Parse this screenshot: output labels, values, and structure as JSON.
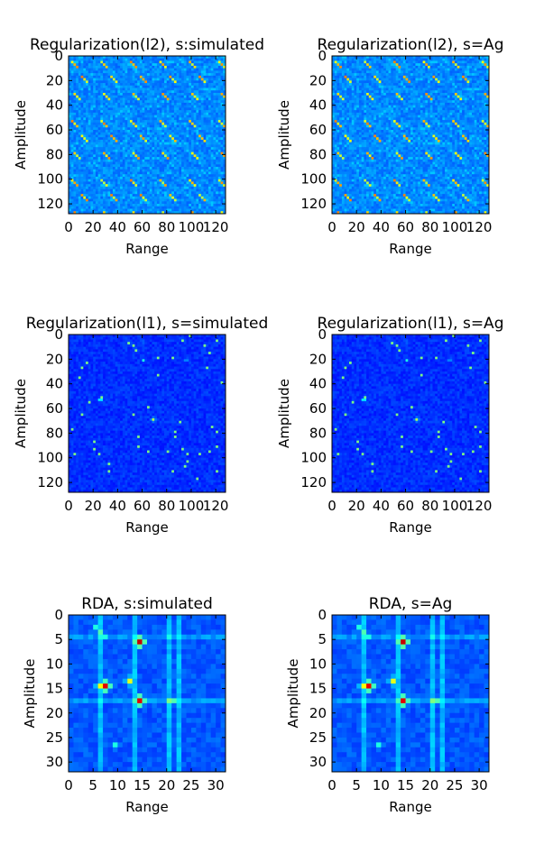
{
  "chart_data": [
    {
      "type": "heatmap",
      "id": "l2-sim",
      "title": "Regularization(l2), s:simulated",
      "xlabel": "Range",
      "ylabel": "Amplitude",
      "xlim": [
        0,
        128
      ],
      "ylim": [
        128,
        0
      ],
      "xticks": [
        "0",
        "20",
        "40",
        "60",
        "80",
        "100",
        "120"
      ],
      "yticks": [
        "0",
        "20",
        "40",
        "60",
        "80",
        "100",
        "120"
      ],
      "xtick_values": [
        0,
        20,
        40,
        60,
        80,
        100,
        120
      ],
      "ytick_values": [
        0,
        20,
        40,
        60,
        80,
        100,
        120
      ],
      "colormap": "jet",
      "pattern": "periodic-diagonal",
      "hotspots": [],
      "background_level": 0.22
    },
    {
      "type": "heatmap",
      "id": "l2-ag",
      "title": "Regularization(l2), s=Ag",
      "xlabel": "Range",
      "ylabel": "Amplitude",
      "xlim": [
        0,
        128
      ],
      "ylim": [
        128,
        0
      ],
      "xticks": [
        "0",
        "20",
        "40",
        "60",
        "80",
        "100",
        "120"
      ],
      "yticks": [
        "0",
        "20",
        "40",
        "60",
        "80",
        "100",
        "120"
      ],
      "xtick_values": [
        0,
        20,
        40,
        60,
        80,
        100,
        120
      ],
      "ytick_values": [
        0,
        20,
        40,
        60,
        80,
        100,
        120
      ],
      "colormap": "jet",
      "pattern": "periodic-diagonal",
      "hotspots": [],
      "background_level": 0.22
    },
    {
      "type": "heatmap",
      "id": "l1-sim",
      "title": "Regularization(l1), s=simulated",
      "xlabel": "Range",
      "ylabel": "Amplitude",
      "xlim": [
        0,
        128
      ],
      "ylim": [
        128,
        0
      ],
      "xticks": [
        "0",
        "20",
        "40",
        "60",
        "80",
        "100",
        "120"
      ],
      "yticks": [
        "0",
        "20",
        "40",
        "60",
        "80",
        "100",
        "120"
      ],
      "xtick_values": [
        0,
        20,
        40,
        60,
        80,
        100,
        120
      ],
      "ytick_values": [
        0,
        20,
        40,
        60,
        80,
        100,
        120
      ],
      "colormap": "jet",
      "pattern": "sparse",
      "hotspots": [
        [
          52,
          25,
          0.5
        ],
        [
          68,
          68,
          0.55
        ],
        [
          20,
          60,
          0.4
        ],
        [
          20,
          95,
          0.35
        ],
        [
          5,
          60,
          0.3
        ]
      ],
      "background_level": 0.14
    },
    {
      "type": "heatmap",
      "id": "l1-ag",
      "title": "Regularization(l1), s=Ag",
      "xlabel": "Range",
      "ylabel": "Amplitude",
      "xlim": [
        0,
        128
      ],
      "ylim": [
        128,
        0
      ],
      "xticks": [
        "0",
        "20",
        "40",
        "60",
        "80",
        "100",
        "120"
      ],
      "yticks": [
        "0",
        "20",
        "40",
        "60",
        "80",
        "100",
        "120"
      ],
      "xtick_values": [
        0,
        20,
        40,
        60,
        80,
        100,
        120
      ],
      "ytick_values": [
        0,
        20,
        40,
        60,
        80,
        100,
        120
      ],
      "colormap": "jet",
      "pattern": "sparse",
      "hotspots": [
        [
          52,
          25,
          0.5
        ],
        [
          68,
          68,
          0.55
        ],
        [
          20,
          60,
          0.4
        ],
        [
          20,
          95,
          0.35
        ],
        [
          5,
          60,
          0.3
        ]
      ],
      "background_level": 0.14
    },
    {
      "type": "heatmap",
      "id": "rda-sim",
      "title": "RDA, s:simulated",
      "xlabel": "Range",
      "ylabel": "Amplitude",
      "xlim": [
        0,
        32
      ],
      "ylim": [
        32,
        0
      ],
      "xticks": [
        "0",
        "5",
        "10",
        "15",
        "20",
        "25",
        "30"
      ],
      "yticks": [
        "0",
        "5",
        "10",
        "15",
        "20",
        "25",
        "30"
      ],
      "xtick_values": [
        0,
        5,
        10,
        15,
        20,
        25,
        30
      ],
      "ytick_values": [
        0,
        5,
        10,
        15,
        20,
        25,
        30
      ],
      "colormap": "jet",
      "pattern": "rda",
      "hotspots": [
        [
          5.5,
          14.5,
          0.93
        ],
        [
          14.5,
          7.5,
          0.9
        ],
        [
          17.5,
          14.5,
          0.9
        ],
        [
          14.5,
          6.5,
          0.62
        ],
        [
          13.5,
          12.5,
          0.6
        ],
        [
          3.5,
          6.5,
          0.45
        ],
        [
          2.5,
          5.5,
          0.4
        ],
        [
          4.5,
          7.5,
          0.4
        ],
        [
          17.5,
          20.5,
          0.5
        ],
        [
          17.5,
          21.5,
          0.45
        ],
        [
          4.5,
          20.5,
          0.35
        ],
        [
          26.5,
          9.5,
          0.4
        ],
        [
          17.5,
          27.5,
          0.3
        ],
        [
          4.5,
          28.5,
          0.3
        ]
      ],
      "background_level": 0.18
    },
    {
      "type": "heatmap",
      "id": "rda-ag",
      "title": "RDA, s=Ag",
      "xlabel": "Range",
      "ylabel": "Amplitude",
      "xlim": [
        0,
        32
      ],
      "ylim": [
        32,
        0
      ],
      "xticks": [
        "0",
        "5",
        "10",
        "15",
        "20",
        "25",
        "30"
      ],
      "yticks": [
        "0",
        "5",
        "10",
        "15",
        "20",
        "25",
        "30"
      ],
      "xtick_values": [
        0,
        5,
        10,
        15,
        20,
        25,
        30
      ],
      "ytick_values": [
        0,
        5,
        10,
        15,
        20,
        25,
        30
      ],
      "colormap": "jet",
      "pattern": "rda",
      "hotspots": [
        [
          5.5,
          14.5,
          0.93
        ],
        [
          14.5,
          7.5,
          0.9
        ],
        [
          17.5,
          14.5,
          0.9
        ],
        [
          14.5,
          6.5,
          0.62
        ],
        [
          13.5,
          12.5,
          0.6
        ],
        [
          3.5,
          6.5,
          0.45
        ],
        [
          2.5,
          5.5,
          0.4
        ],
        [
          4.5,
          7.5,
          0.4
        ],
        [
          17.5,
          20.5,
          0.5
        ],
        [
          17.5,
          21.5,
          0.45
        ],
        [
          4.5,
          20.5,
          0.35
        ],
        [
          26.5,
          9.5,
          0.4
        ],
        [
          17.5,
          27.5,
          0.3
        ],
        [
          4.5,
          28.5,
          0.3
        ]
      ],
      "background_level": 0.18
    }
  ]
}
